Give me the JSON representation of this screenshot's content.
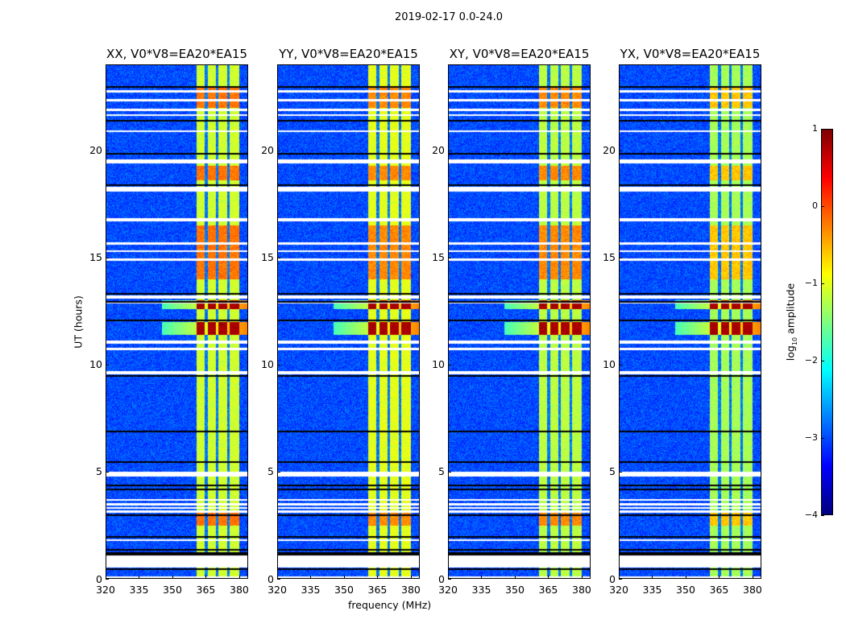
{
  "figure": {
    "suptitle": "2019-02-17 0.0-24.0",
    "xlabel": "frequency (MHz)",
    "ylabel": "UT (hours)",
    "colorbar_label_prefix": "log",
    "colorbar_label_sub": "10",
    "colorbar_label_suffix": " amplitude"
  },
  "chart_data": {
    "type": "heatmap",
    "colormap": "jet",
    "x_range": [
      320,
      384
    ],
    "y_range": [
      0,
      24
    ],
    "x_ticks": [
      "320",
      "335",
      "350",
      "365",
      "380"
    ],
    "x_tick_values": [
      320,
      335,
      350,
      365,
      380
    ],
    "y_ticks": [
      "0",
      "5",
      "10",
      "15",
      "20"
    ],
    "y_tick_values": [
      0,
      5,
      10,
      15,
      20
    ],
    "colorbar": {
      "range": [
        -4,
        1
      ],
      "ticks": [
        "1",
        "0",
        "−1",
        "−2",
        "−3",
        "−4"
      ],
      "tick_values": [
        1,
        0,
        -1,
        -2,
        -3,
        -4
      ]
    },
    "panels": [
      {
        "title": "XX, V0*V8=EA20*EA15",
        "band_level": -1.1,
        "hot_level": -0.2
      },
      {
        "title": "YY, V0*V8=EA20*EA15",
        "band_level": -1.0,
        "hot_level": -0.3
      },
      {
        "title": "XY, V0*V8=EA20*EA15",
        "band_level": -1.2,
        "hot_level": -0.3
      },
      {
        "title": "YX, V0*V8=EA20*EA15",
        "band_level": -1.3,
        "hot_level": -0.6
      }
    ],
    "background_level": -3.0,
    "band_MHz": [
      360.5,
      380
    ],
    "band_gaps_MHz": [
      365,
      370,
      375
    ],
    "strong_rfi_hours": [
      [
        11.4,
        12.0
      ],
      [
        12.6,
        13.0
      ]
    ],
    "strong_rfi_level": 0.8,
    "enhanced_hours": [
      [
        14.0,
        16.5
      ],
      [
        18.6,
        19.3
      ],
      [
        22.0,
        23.0
      ],
      [
        2.5,
        3.2
      ]
    ],
    "flagged_hours": [
      [
        22.7,
        22.8
      ],
      [
        22.3,
        22.4
      ],
      [
        21.85,
        21.95
      ],
      [
        21.6,
        21.7
      ],
      [
        20.85,
        20.95
      ],
      [
        19.4,
        19.6
      ],
      [
        18.1,
        18.3
      ],
      [
        16.7,
        16.85
      ],
      [
        15.6,
        15.7
      ],
      [
        15.25,
        15.35
      ],
      [
        14.85,
        14.95
      ],
      [
        13.1,
        13.25
      ],
      [
        12.85,
        12.9
      ],
      [
        11.0,
        11.15
      ],
      [
        10.7,
        10.8
      ],
      [
        9.55,
        9.7
      ],
      [
        4.8,
        5.0
      ],
      [
        3.65,
        3.75
      ],
      [
        3.45,
        3.55
      ],
      [
        3.3,
        3.38
      ],
      [
        3.1,
        3.2
      ],
      [
        1.8,
        1.85
      ],
      [
        0.55,
        1.1
      ],
      [
        0.0,
        0.12
      ]
    ],
    "gap_lines_hours": [
      23.0,
      21.4,
      19.85,
      18.4,
      13.35,
      12.95,
      12.1,
      9.5,
      6.9,
      5.5,
      4.4,
      4.2,
      3.0,
      2.0,
      1.4,
      1.25,
      1.15,
      0.5
    ]
  }
}
